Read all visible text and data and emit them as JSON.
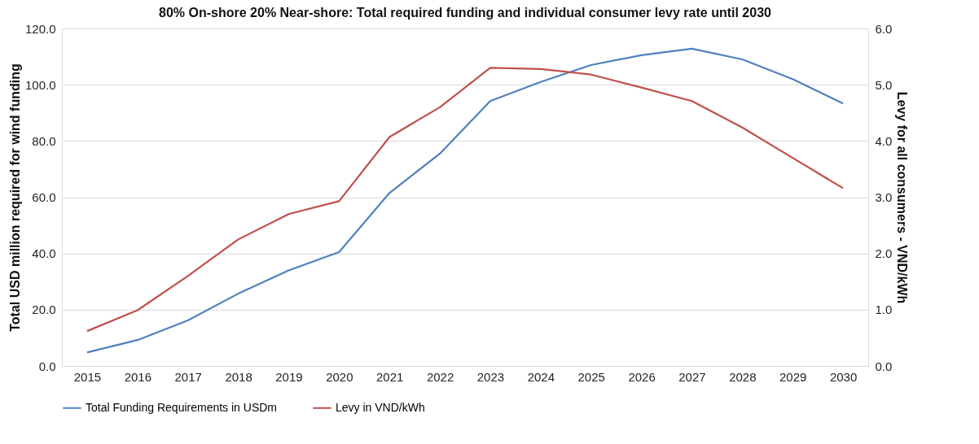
{
  "chart_data": {
    "type": "line",
    "title": "80% On-shore 20% Near-shore: Total required funding and individual consumer levy rate until 2030",
    "ylabel": "Total USD million required for wind funding",
    "y2label": "Levy for all consumers - VND/kWh",
    "categories": [
      "2015",
      "2016",
      "2017",
      "2018",
      "2019",
      "2020",
      "2021",
      "2022",
      "2023",
      "2024",
      "2025",
      "2026",
      "2027",
      "2028",
      "2029",
      "2030"
    ],
    "series": [
      {
        "name": "Total Funding Requirements in USDm",
        "color": "#4f81bd",
        "values": [
          4.8,
          9.2,
          16.2,
          25.7,
          34,
          40.5,
          61.5,
          75.5,
          94.2,
          101,
          107,
          110.5,
          112.8,
          109,
          102,
          93.3
        ]
      },
      {
        "name": "Levy in VND/kWh",
        "color": "#c0504d",
        "axis": "y2",
        "values": [
          0.62,
          0.99,
          1.6,
          2.25,
          2.7,
          2.93,
          4.07,
          4.6,
          5.3,
          5.28,
          5.18,
          4.95,
          4.71,
          4.24,
          3.7,
          3.16
        ]
      }
    ],
    "ylim": [
      0,
      120
    ],
    "yticks": [
      {
        "value": 0,
        "label": "0.0"
      },
      {
        "value": 20,
        "label": "20.0"
      },
      {
        "value": 40,
        "label": "40.0"
      },
      {
        "value": 60,
        "label": "60.0"
      },
      {
        "value": 80,
        "label": "80.0"
      },
      {
        "value": 100,
        "label": "100.0"
      },
      {
        "value": 120,
        "label": "120.0"
      }
    ],
    "y2lim": [
      0,
      6
    ],
    "y2ticks": [
      {
        "value": 0,
        "label": "0.0"
      },
      {
        "value": 1,
        "label": "1.0"
      },
      {
        "value": 2,
        "label": "2.0"
      },
      {
        "value": 3,
        "label": "3.0"
      },
      {
        "value": 4,
        "label": "4.0"
      },
      {
        "value": 5,
        "label": "5.0"
      },
      {
        "value": 6,
        "label": "6.0"
      }
    ],
    "grid": "y",
    "legend": "bottom",
    "line_style": "solid"
  }
}
